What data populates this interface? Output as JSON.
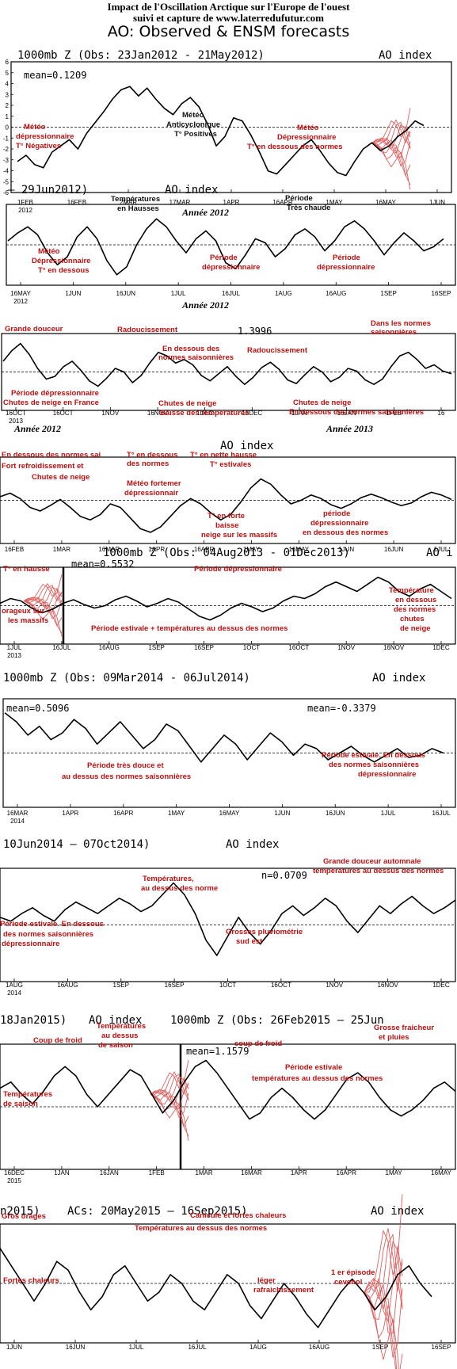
{
  "header": {
    "line1": "Impact de l'Oscillation Arctique sur l'Europe de l'ouest",
    "line2": "suivi et capture de www.laterredufutur.com",
    "line3": "AO: Observed & ENSM forecasts"
  },
  "colors": {
    "curve": "#000000",
    "annotation": "#c01010",
    "ensemble": "#e06060",
    "frame": "#000000"
  },
  "chart_data": [
    {
      "type": "line",
      "title": "1000mb Z (Obs: 23Jan2012 - 21May2012)",
      "index_label": "AO index",
      "mean": "mean=0.1209",
      "ylim": [
        -6,
        6
      ],
      "y_ticks": [
        "6",
        "5",
        "4",
        "3",
        "2",
        "1",
        "0",
        "-1",
        "-2",
        "-3",
        "-4",
        "-5",
        "-6"
      ],
      "x_ticks": [
        "1FEB",
        "16FEB",
        "2MAR",
        "17MAR",
        "1APR",
        "16APR",
        "1MAY",
        "16MAY",
        "1JUN"
      ],
      "year_tick": "2012",
      "year_caption": "Année 2012",
      "ensemble": true,
      "values": [
        -2.2,
        -1.8,
        -2.4,
        -2.6,
        -1.6,
        -1.2,
        -0.8,
        -1.4,
        -0.4,
        0.3,
        1.0,
        1.8,
        2.4,
        2.6,
        2.0,
        2.5,
        1.8,
        1.2,
        0.8,
        1.5,
        1.9,
        1.3,
        0.2,
        -1.2,
        -0.6,
        0.6,
        0.4,
        -0.5,
        -1.6,
        -2.8,
        -3.0,
        -2.4,
        -1.8,
        -1.2,
        -0.8,
        -1.5,
        -2.3,
        -2.9,
        -3.1,
        -2.2,
        -1.4,
        -1.0,
        -1.5,
        -1.2,
        -0.6,
        -0.2,
        0.4,
        0.1
      ],
      "annotations": [
        "Météo",
        "dépressionnaire",
        "T° Négatives",
        "Météo",
        "Anticyclonique",
        "T° Positives",
        "Météo",
        "Dépressionnaire",
        "T° en dessous des normes"
      ]
    },
    {
      "type": "line",
      "title": "– 29Jun2012)",
      "index_label": "AO index",
      "mean": "",
      "x_ticks": [
        "16MAY",
        "1JUN",
        "16JUN",
        "1JUL",
        "16JUL",
        "1AUG",
        "16AUG",
        "1SEP",
        "16SEP"
      ],
      "year_tick": "2012",
      "year_caption": "Année 2012",
      "values": [
        0.2,
        0.6,
        0.9,
        0.5,
        -0.4,
        -1.0,
        -0.6,
        0.4,
        0.9,
        0.3,
        -0.8,
        -1.5,
        -1.1,
        0.0,
        0.8,
        1.3,
        0.9,
        0.2,
        -0.4,
        0.3,
        0.7,
        0.2,
        -0.9,
        -1.2,
        -0.5,
        0.3,
        0.1,
        -0.6,
        -0.2,
        0.5,
        0.8,
        0.4,
        -0.3,
        0.2,
        0.9,
        1.2,
        0.8,
        0.2,
        -0.5,
        0.1,
        0.6,
        0.2,
        -0.3,
        -0.1,
        0.3
      ],
      "annotations": [
        "Températures",
        "en Hausses",
        "Période",
        "Très chaude",
        "Météo",
        "Dépressionnaire",
        "T° en dessous",
        "Période",
        "dépressionnaire",
        "Période",
        "dépressionnaire"
      ]
    },
    {
      "type": "line",
      "title": "",
      "index_label": "",
      "mean": "1.3996",
      "x_ticks": [
        "16OCT",
        "16OCT",
        "1NOV",
        "16NOV",
        "1DEC",
        "16DEC",
        "1JAN",
        "16JAN",
        "1FEB",
        "16"
      ],
      "year_tick": "2013",
      "year_caption": "Année 2012",
      "year_caption_2": "Année 2013",
      "values": [
        1.2,
        2.4,
        3.2,
        2.0,
        0.4,
        -0.8,
        -0.5,
        0.6,
        1.2,
        0.2,
        -1.0,
        -1.6,
        -0.7,
        0.4,
        0.0,
        -1.2,
        -0.4,
        1.0,
        2.2,
        1.8,
        1.0,
        1.4,
        0.8,
        -0.4,
        -1.0,
        -0.2,
        0.6,
        -0.5,
        -1.4,
        -0.6,
        0.5,
        1.1,
        0.3,
        -0.9,
        -1.3,
        -0.3,
        0.6,
        0.0,
        -1.1,
        -0.6,
        0.4,
        0.1,
        -0.9,
        -1.4,
        -0.8,
        0.6,
        1.8,
        2.2,
        1.4,
        0.4,
        0.8,
        0.1,
        -0.2
      ],
      "annotations": [
        "Grande douceur",
        "Radoucissement",
        "En dessous des",
        "normes saisonnières",
        "Radoucissement",
        "Dans les normes",
        "saisonnières",
        "Période dépressionnaire",
        "Chutes de neige en France",
        "Chutes de neige",
        "Baisse des températures",
        "Chutes de neige",
        "En dessous des normes saisonnières"
      ]
    },
    {
      "type": "line",
      "title": "",
      "index_label": "AO index",
      "mean": "",
      "x_ticks": [
        "16FEB",
        "1MAR",
        "16MAR",
        "1APR",
        "16APR",
        "1MAY",
        "16MAY",
        "1JUN",
        "16JUN",
        "1JUL"
      ],
      "values": [
        0.4,
        0.8,
        0.2,
        -0.8,
        -1.2,
        -0.6,
        0.1,
        -0.8,
        -1.8,
        -2.2,
        -1.6,
        -0.4,
        -0.8,
        -2.0,
        -3.2,
        -3.6,
        -3.0,
        -1.8,
        -0.6,
        0.2,
        -0.4,
        -1.4,
        -2.2,
        -1.6,
        -0.2,
        1.4,
        2.4,
        1.8,
        0.6,
        -0.4,
        0.0,
        0.6,
        0.2,
        -0.5,
        -0.9,
        -0.4,
        0.3,
        0.7,
        0.3,
        -0.2,
        -0.6,
        -0.3,
        0.4,
        0.9,
        0.6,
        0.1
      ],
      "annotations": [
        "En dessous des normes sai",
        "Fort refroidissement et",
        "Chutes de neige",
        "T° en dessous",
        "des normes",
        "Météo fortemer",
        "dépressionnair",
        "T° en nette hausse",
        "T° estivales",
        "T° en forte",
        "baisse",
        "neige sur les massifs",
        "période",
        "dépressionnaire",
        "en dessous des normes"
      ]
    },
    {
      "type": "line",
      "title": "1000mb Z (Obs: 04Aug2013 - 01Dec2013)",
      "index_label": "AO i",
      "mean": "mean=0.5532",
      "x_ticks": [
        "1JUL",
        "16JUL",
        "16AUG",
        "1SEP",
        "16SEP",
        "1OCT",
        "16OCT",
        "1NOV",
        "16NOV",
        "1DEC"
      ],
      "year_tick": "2013",
      "ensemble": true,
      "values": [
        0.2,
        0.6,
        0.4,
        -0.2,
        -0.6,
        -0.3,
        0.2,
        0.5,
        0.1,
        -0.2,
        0.0,
        0.5,
        0.8,
        0.4,
        -0.1,
        0.2,
        0.6,
        0.3,
        -0.3,
        -0.9,
        -1.2,
        -0.8,
        -0.2,
        0.2,
        -0.1,
        -0.5,
        -0.2,
        0.4,
        0.8,
        0.6,
        1.0,
        1.6,
        2.0,
        1.6,
        1.2,
        1.8,
        2.4,
        2.0,
        1.2,
        0.8,
        1.4,
        1.8,
        1.2,
        0.6
      ],
      "annotations": [
        "T° en hausse",
        "orageux sur",
        "les massifs",
        "Période dépressionnaire",
        "Période estivale + températures au dessus des normes",
        "Température",
        "en dessous",
        "des normes",
        "chutes",
        "de neige"
      ]
    },
    {
      "type": "line",
      "title": "1000mb Z (Obs: 09Mar2014 - 06Jul2014)",
      "index_label": "AO index",
      "mean": "mean=0.5096",
      "mean_2": "mean=-0.3379",
      "x_ticks": [
        "16MAR",
        "1APR",
        "16APR",
        "1MAY",
        "16MAY",
        "1JUN",
        "16JUN",
        "1JUL",
        "16JUL"
      ],
      "year_tick": "2014",
      "values": [
        1.8,
        1.4,
        0.8,
        1.2,
        0.6,
        0.9,
        1.5,
        1.1,
        0.4,
        0.9,
        1.4,
        0.8,
        0.2,
        0.6,
        1.3,
        1.0,
        0.3,
        -0.4,
        0.2,
        0.8,
        0.4,
        -0.3,
        0.3,
        0.9,
        0.5,
        -0.1,
        0.4,
        0.2,
        -0.3,
        0.0,
        0.3,
        -0.1,
        -0.4,
        -0.1,
        0.2,
        -0.2,
        -0.1,
        0.2,
        0.0
      ],
      "annotations": [
        "Période très douce et",
        "au dessus des normes saisonnières",
        "Période estivale. En dessous",
        "des normes saisonnières",
        "dépressionnaire"
      ]
    },
    {
      "type": "line",
      "title": "10Jun2014 – 07Oct2014)",
      "index_label": "AO index",
      "mean": "n=0.0709",
      "x_ticks": [
        "1AUG",
        "16AUG",
        "1SEP",
        "16SEP",
        "1OCT",
        "16OCT",
        "1NOV",
        "16NOV",
        "1DEC"
      ],
      "year_tick": "2014",
      "values": [
        0.4,
        0.2,
        0.6,
        0.9,
        0.5,
        0.2,
        0.8,
        1.2,
        0.9,
        0.6,
        1.0,
        1.4,
        1.1,
        0.7,
        1.0,
        1.6,
        2.2,
        1.6,
        0.6,
        -0.8,
        -1.6,
        -0.6,
        0.4,
        -0.4,
        -1.0,
        -0.3,
        0.6,
        1.0,
        0.5,
        0.9,
        1.4,
        1.0,
        0.2,
        -0.4,
        0.3,
        1.0,
        0.6,
        1.1,
        1.5,
        1.0,
        0.6,
        0.9,
        1.3
      ],
      "annotations": [
        "Températures,",
        "au dessus des norme",
        "Grande douceur automnale",
        "températures au dessus des normes",
        "Période estivale. En dessous",
        "des normes saisonnières",
        "dépressionnaire",
        "Grosses pluviométrie",
        "sud est"
      ]
    },
    {
      "type": "line",
      "title": "18Jan2015)",
      "index_label": "AO index",
      "title_2": "1000mb Z (Obs: 26Feb2015 – 25Jun",
      "mean": "mean=1.1579",
      "x_ticks": [
        "16DEC",
        "1JAN",
        "16JAN",
        "1FEB",
        "1MAR",
        "16MAR",
        "1APR",
        "16APR",
        "1MAY",
        "16MAY"
      ],
      "year_tick": "2015",
      "ensemble": true,
      "values": [
        1.2,
        1.6,
        0.8,
        0.2,
        1.0,
        2.0,
        2.6,
        2.0,
        0.8,
        0.0,
        0.8,
        1.6,
        2.4,
        2.0,
        0.8,
        -0.4,
        0.4,
        1.6,
        2.6,
        3.0,
        2.2,
        1.2,
        0.2,
        -0.8,
        -0.4,
        0.6,
        1.2,
        0.6,
        -0.2,
        -0.8,
        -0.2,
        0.8,
        1.8,
        2.2,
        1.6,
        0.6,
        -0.2,
        -0.6,
        -0.2,
        0.4,
        1.2,
        1.6,
        1.0
      ],
      "annotations": [
        "Coup de froid",
        "Températures",
        "au dessus",
        "de saison",
        "Températures",
        "de saison",
        "coup de froid",
        "Grosse fraicheur",
        "et pluies",
        "Période estivale",
        "températures au dessus des normes"
      ]
    },
    {
      "type": "line",
      "title": "n2015)",
      "index_label": "AO index",
      "title_2": "ACs: 20May2015 – 16Sep2015)",
      "x_ticks": [
        "1JUN",
        "16JUN",
        "1JUL",
        "16JUL",
        "1AUG",
        "16AUG",
        "1SEP",
        "16SEP"
      ],
      "ensemble": true,
      "values": [
        0.8,
        0.4,
        0.0,
        -0.4,
        0.0,
        0.5,
        0.3,
        -0.2,
        -0.6,
        -0.3,
        0.2,
        0.4,
        0.0,
        -0.4,
        -0.2,
        0.2,
        0.0,
        -0.4,
        -0.6,
        -0.2,
        0.2,
        0.0,
        -0.5,
        -0.8,
        -0.4,
        0.0,
        -0.3,
        -0.7,
        -1.0,
        -0.6,
        -0.2,
        0.1,
        -0.2,
        -0.6,
        -0.3,
        0.2,
        0.4,
        0.0,
        -0.3
      ],
      "annotations": [
        "Gros orages",
        "Canicule et fortes chaleurs",
        "Températures au dessus des normes",
        "Fortes chaleurs",
        "léger",
        "rafraichissement",
        "1 er épisode",
        "cevenol"
      ]
    }
  ]
}
